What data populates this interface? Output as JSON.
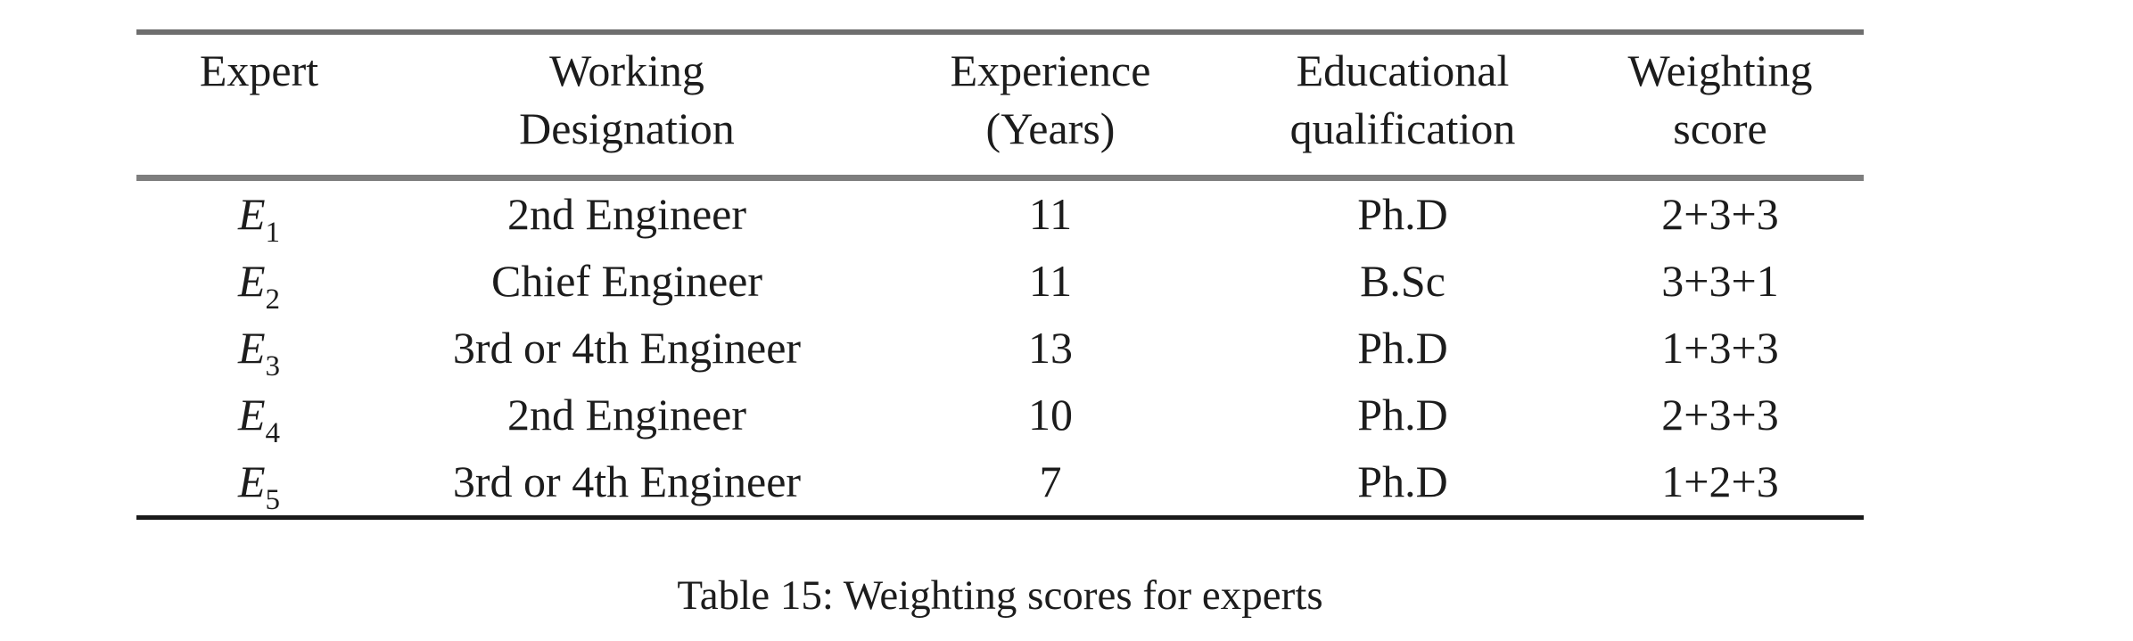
{
  "page": {
    "background": "#ffffff",
    "text_color": "#1c1c1c",
    "rule_gray": "#7e7e7e",
    "rule_dark": "#1a1a1a"
  },
  "table": {
    "caption": "Table 15: Weighting scores for experts",
    "headers": [
      {
        "line1": "Expert",
        "line2": ""
      },
      {
        "line1": "Working",
        "line2": "Designation"
      },
      {
        "line1": "Experience",
        "line2": "(Years)"
      },
      {
        "line1": "Educational",
        "line2": "qualification"
      },
      {
        "line1": "Weighting",
        "line2": "score"
      }
    ],
    "rows": [
      {
        "expert_base": "E",
        "expert_sub": "1",
        "designation": "2nd Engineer",
        "experience_years": "11",
        "qualification": "Ph.D",
        "weighting_score": "2+3+3"
      },
      {
        "expert_base": "E",
        "expert_sub": "2",
        "designation": "Chief Engineer",
        "experience_years": "11",
        "qualification": "B.Sc",
        "weighting_score": "3+3+1"
      },
      {
        "expert_base": "E",
        "expert_sub": "3",
        "designation": "3rd or 4th Engineer",
        "experience_years": "13",
        "qualification": "Ph.D",
        "weighting_score": "1+3+3"
      },
      {
        "expert_base": "E",
        "expert_sub": "4",
        "designation": "2nd Engineer",
        "experience_years": "10",
        "qualification": "Ph.D",
        "weighting_score": "2+3+3"
      },
      {
        "expert_base": "E",
        "expert_sub": "5",
        "designation": "3rd or 4th Engineer",
        "experience_years": "7",
        "qualification": "Ph.D",
        "weighting_score": "1+2+3"
      }
    ]
  }
}
